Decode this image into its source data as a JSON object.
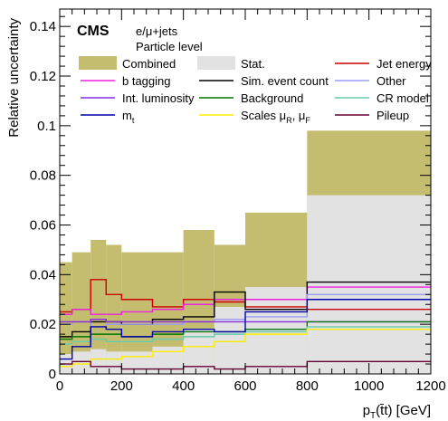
{
  "chart_data": {
    "type": "line",
    "subtype": "step-histogram",
    "title": "",
    "experiment_label": "CMS",
    "annotations": [
      "e/μ+jets",
      "Particle level"
    ],
    "xlabel": "p_T(t̄t) [GeV]",
    "ylabel": "Relative uncertainty",
    "xlim": [
      0,
      1200
    ],
    "ylim": [
      0,
      0.147
    ],
    "x_ticks": [
      0,
      200,
      400,
      600,
      800,
      1000,
      1200
    ],
    "x_tick_labels": [
      "0",
      "200",
      "400",
      "600",
      "800",
      "1000",
      "1200"
    ],
    "y_ticks": [
      0,
      0.02,
      0.04,
      0.06,
      0.08,
      0.1,
      0.12,
      0.14
    ],
    "y_tick_labels": [
      "0",
      "0.02",
      "0.04",
      "0.06",
      "0.08",
      "0.1",
      "0.12",
      "0.14"
    ],
    "bin_edges": [
      0,
      40,
      100,
      150,
      200,
      300,
      400,
      500,
      600,
      800,
      1200
    ],
    "legend_position": "top",
    "grid": false,
    "bands": [
      {
        "name": "Combined",
        "color": "#c4bc6e",
        "values": [
          0.045,
          0.049,
          0.054,
          0.052,
          0.049,
          0.049,
          0.058,
          0.052,
          0.065,
          0.098
        ]
      },
      {
        "name": "Stat.",
        "color": "#e2e2e2",
        "values": [
          0.008,
          0.009,
          0.01,
          0.009,
          0.009,
          0.011,
          0.018,
          0.027,
          0.035,
          0.072
        ]
      }
    ],
    "series": [
      {
        "name": "Jet energy",
        "color": "#cc0000",
        "values": [
          0.025,
          0.026,
          0.038,
          0.032,
          0.03,
          0.027,
          0.03,
          0.029,
          0.027,
          0.026
        ]
      },
      {
        "name": "b tagging",
        "color": "#ee22dd",
        "values": [
          0.024,
          0.026,
          0.024,
          0.024,
          0.025,
          0.026,
          0.028,
          0.03,
          0.03,
          0.035
        ]
      },
      {
        "name": "Sim. event count",
        "color": "#000000",
        "values": [
          0.015,
          0.017,
          0.021,
          0.021,
          0.02,
          0.022,
          0.023,
          0.033,
          0.026,
          0.037
        ]
      },
      {
        "name": "Other",
        "color": "#9b9bf5",
        "values": [
          0.02,
          0.021,
          0.019,
          0.02,
          0.02,
          0.02,
          0.021,
          0.022,
          0.023,
          0.032
        ]
      },
      {
        "name": "Int. luminosity",
        "color": "#8a2be2",
        "values": [
          0.021,
          0.021,
          0.022,
          0.021,
          0.021,
          0.021,
          0.021,
          0.021,
          0.021,
          0.021
        ]
      },
      {
        "name": "Background",
        "color": "#007700",
        "values": [
          0.014,
          0.015,
          0.016,
          0.016,
          0.015,
          0.016,
          0.017,
          0.017,
          0.018,
          0.021
        ]
      },
      {
        "name": "CR model",
        "color": "#66ccaa",
        "values": [
          0.012,
          0.013,
          0.014,
          0.013,
          0.013,
          0.014,
          0.015,
          0.016,
          0.017,
          0.019
        ]
      },
      {
        "name": "m_t",
        "color": "#0000aa",
        "values": [
          0.006,
          0.011,
          0.019,
          0.018,
          0.015,
          0.017,
          0.018,
          0.017,
          0.025,
          0.03
        ]
      },
      {
        "name": "Scales μ_R, μ_F",
        "color": "#ffee00",
        "values": [
          0.003,
          0.004,
          0.006,
          0.006,
          0.007,
          0.009,
          0.011,
          0.013,
          0.016,
          0.018
        ]
      },
      {
        "name": "Pileup",
        "color": "#660033",
        "values": [
          0.004,
          0.005,
          0.003,
          0.003,
          0.002,
          0.002,
          0.003,
          0.002,
          0.003,
          0.005
        ]
      }
    ]
  }
}
